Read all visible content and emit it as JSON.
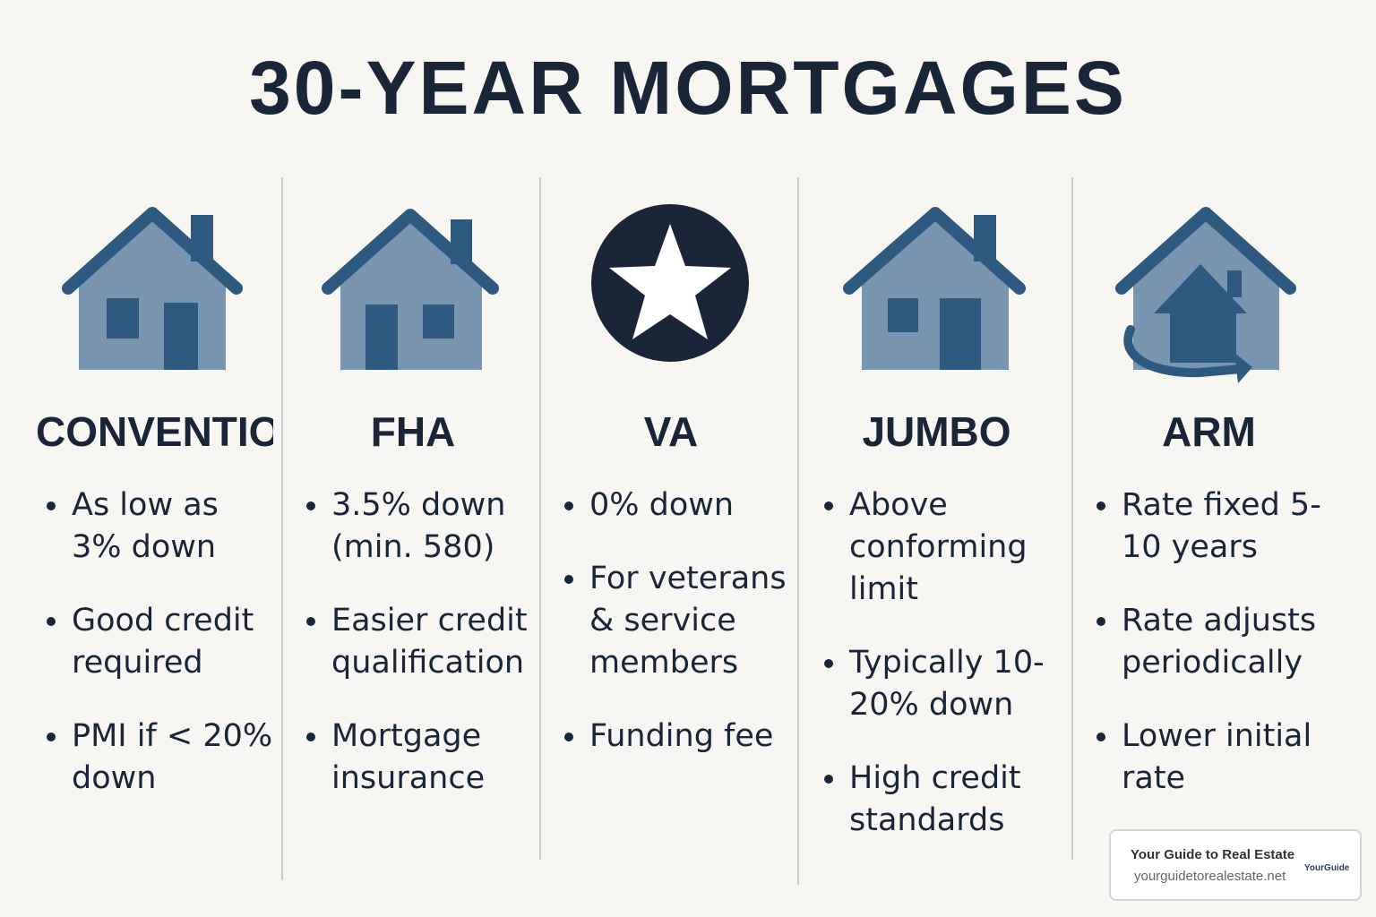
{
  "title": "30-YEAR MORTGAGES",
  "columns": [
    {
      "title": "CONVENTIONA",
      "bullets": [
        "As low as 3% down",
        "Good credit required",
        "PMI if < 20% down"
      ]
    },
    {
      "title": "FHA",
      "bullets": [
        "3.5% down (min. 580)",
        "Easier credit qualification",
        "Mortgage insurance"
      ]
    },
    {
      "title": "VA",
      "bullets": [
        "0% down",
        "For veterans & service members",
        "Funding fee"
      ]
    },
    {
      "title": "JUMBO",
      "bullets": [
        "Above conforming limit",
        "Typically 10-20% down",
        "High credit standards"
      ]
    },
    {
      "title": "ARM",
      "bullets": [
        "Rate fixed 5-10 years",
        "Rate adjusts periodically",
        "Lower initial rate"
      ]
    }
  ],
  "badge": {
    "name": "Your Guide to Real Estate",
    "url": "yourguidetorealestate.net",
    "logo": "YourGuide"
  }
}
